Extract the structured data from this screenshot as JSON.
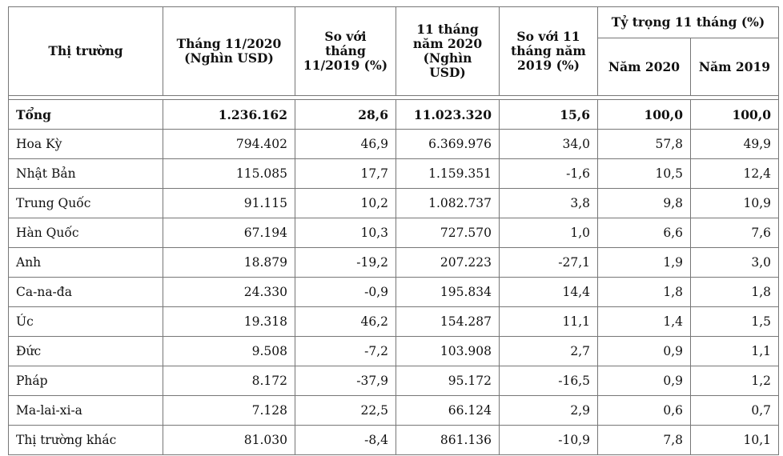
{
  "headers": {
    "market": "Thị trường",
    "nov2020": "Tháng 11/2020 (Nghìn USD)",
    "vs_nov2019": "So với tháng 11/2019 (%)",
    "m11_2020": "11 tháng năm 2020 (Nghìn USD)",
    "vs_m11_2019": "So với 11 tháng năm 2019 (%)",
    "share_group": "Tỷ trọng 11 tháng (%)",
    "share_2020": "Năm 2020",
    "share_2019": "Năm 2019"
  },
  "rows": [
    {
      "market": "Tổng",
      "nov2020": "1.236.162",
      "vs_nov2019": "28,6",
      "m11_2020": "11.023.320",
      "vs_m11_2019": "15,6",
      "share_2020": "100,0",
      "share_2019": "100,0"
    },
    {
      "market": "Hoa Kỳ",
      "nov2020": "794.402",
      "vs_nov2019": "46,9",
      "m11_2020": "6.369.976",
      "vs_m11_2019": "34,0",
      "share_2020": "57,8",
      "share_2019": "49,9"
    },
    {
      "market": "Nhật Bản",
      "nov2020": "115.085",
      "vs_nov2019": "17,7",
      "m11_2020": "1.159.351",
      "vs_m11_2019": "-1,6",
      "share_2020": "10,5",
      "share_2019": "12,4"
    },
    {
      "market": "Trung Quốc",
      "nov2020": "91.115",
      "vs_nov2019": "10,2",
      "m11_2020": "1.082.737",
      "vs_m11_2019": "3,8",
      "share_2020": "9,8",
      "share_2019": "10,9"
    },
    {
      "market": "Hàn Quốc",
      "nov2020": "67.194",
      "vs_nov2019": "10,3",
      "m11_2020": "727.570",
      "vs_m11_2019": "1,0",
      "share_2020": "6,6",
      "share_2019": "7,6"
    },
    {
      "market": "Anh",
      "nov2020": "18.879",
      "vs_nov2019": "-19,2",
      "m11_2020": "207.223",
      "vs_m11_2019": "-27,1",
      "share_2020": "1,9",
      "share_2019": "3,0"
    },
    {
      "market": "Ca-na-đa",
      "nov2020": "24.330",
      "vs_nov2019": "-0,9",
      "m11_2020": "195.834",
      "vs_m11_2019": "14,4",
      "share_2020": "1,8",
      "share_2019": "1,8"
    },
    {
      "market": "Úc",
      "nov2020": "19.318",
      "vs_nov2019": "46,2",
      "m11_2020": "154.287",
      "vs_m11_2019": "11,1",
      "share_2020": "1,4",
      "share_2019": "1,5"
    },
    {
      "market": "Đức",
      "nov2020": "9.508",
      "vs_nov2019": "-7,2",
      "m11_2020": "103.908",
      "vs_m11_2019": "2,7",
      "share_2020": "0,9",
      "share_2019": "1,1"
    },
    {
      "market": "Pháp",
      "nov2020": "8.172",
      "vs_nov2019": "-37,9",
      "m11_2020": "95.172",
      "vs_m11_2019": "-16,5",
      "share_2020": "0,9",
      "share_2019": "1,2"
    },
    {
      "market": "Ma-lai-xi-a",
      "nov2020": "7.128",
      "vs_nov2019": "22,5",
      "m11_2020": "66.124",
      "vs_m11_2019": "2,9",
      "share_2020": "0,6",
      "share_2019": "0,7"
    },
    {
      "market": "Thị trường khác",
      "nov2020": "81.030",
      "vs_nov2019": "-8,4",
      "m11_2020": "861.136",
      "vs_m11_2019": "-10,9",
      "share_2020": "7,8",
      "share_2019": "10,1"
    }
  ]
}
